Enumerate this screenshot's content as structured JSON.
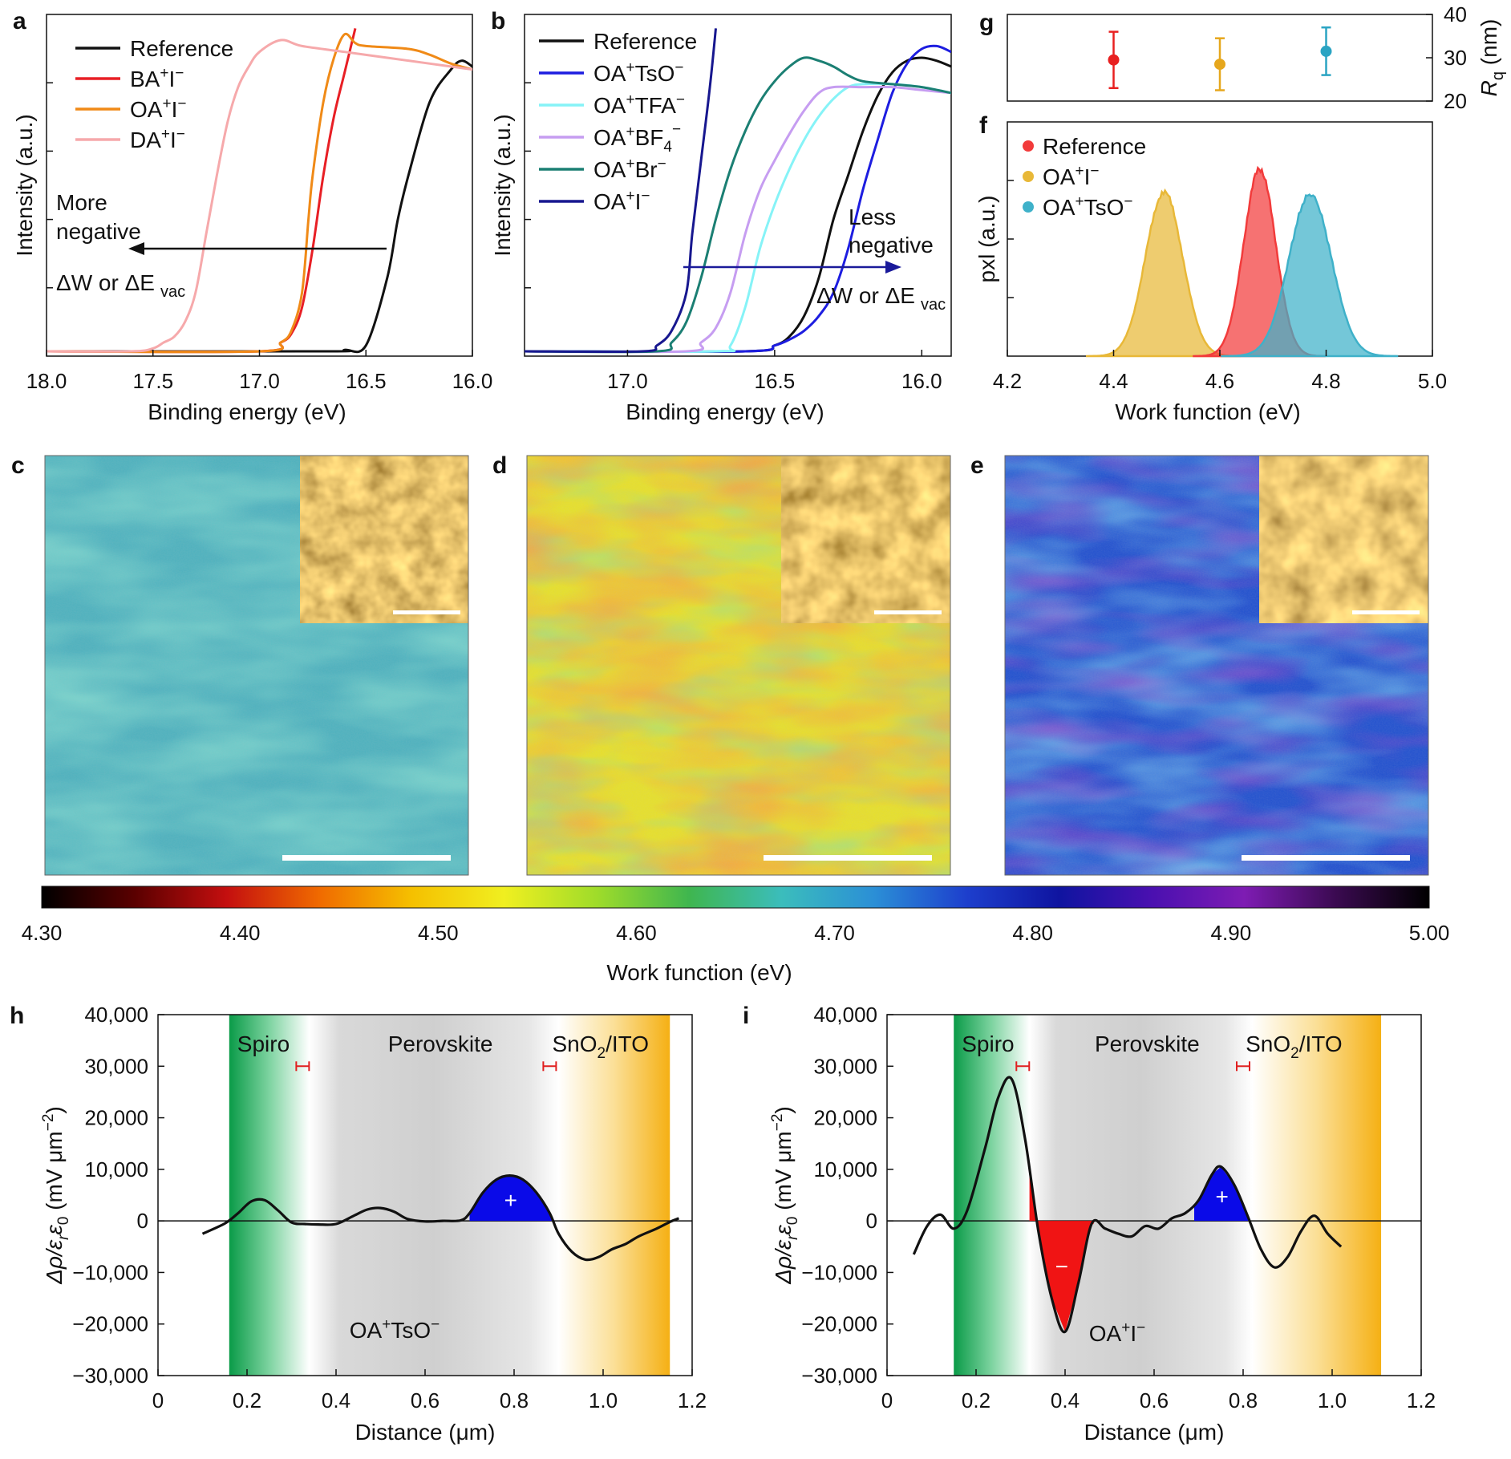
{
  "colors": {
    "Reference": "#111111",
    "BA+I-": "#e81f25",
    "OA+I-": "#f08a17",
    "DA+I-": "#f6a9ab",
    "OA+TsO-": "#1d1de0",
    "OA+TFA-": "#86f3f7",
    "OA+BF4-": "#c69df1",
    "OA+Br-": "#1b7f73",
    "OA+I-_b": "#17178f",
    "f_Reference": "#f23b3b",
    "f_OA+I-": "#e8b838",
    "f_OA+TsO-": "#3fb1c9",
    "g_red": "#e82020",
    "g_yellow": "#e6a71d",
    "g_cyan": "#2aa4c3",
    "spiro_green": "#0a9b48",
    "sno2_orange": "#f5b014",
    "fill_pos": "#0a0ae8",
    "fill_neg": "#f01414"
  },
  "chart_data": [
    {
      "panel": "a",
      "type": "line",
      "xlabel": "Binding energy (eV)",
      "ylabel": "Intensity (a.u.)",
      "xlim": [
        18.0,
        16.0
      ],
      "xticks": [
        "18.0",
        "17.5",
        "17.0",
        "16.5",
        "16.0"
      ],
      "legend_title": "",
      "series": [
        {
          "name": "Reference",
          "x": [
            18.0,
            16.7,
            16.6,
            16.5,
            16.4,
            16.35,
            16.3,
            16.2,
            16.1,
            16.05,
            16.0
          ],
          "y": [
            0,
            0,
            0.005,
            0.02,
            0.25,
            0.45,
            0.6,
            0.85,
            0.96,
            0.99,
            0.97
          ]
        },
        {
          "name": "BA+I−",
          "x": [
            18.0,
            17.0,
            16.9,
            16.85,
            16.8,
            16.75,
            16.7,
            16.65,
            16.6,
            16.55
          ],
          "y": [
            0,
            0,
            0.03,
            0.06,
            0.15,
            0.35,
            0.6,
            0.8,
            0.95,
            1.1
          ]
        },
        {
          "name": "OA+I−",
          "x": [
            18.0,
            17.0,
            16.9,
            16.85,
            16.8,
            16.77,
            16.75,
            16.7,
            16.65,
            16.6,
            16.55,
            16.5,
            16.3,
            16.2,
            16.1,
            16.0
          ],
          "y": [
            0,
            0,
            0.03,
            0.07,
            0.2,
            0.45,
            0.6,
            0.85,
            1.0,
            1.08,
            1.05,
            1.04,
            1.03,
            1.01,
            0.98,
            0.96
          ]
        },
        {
          "name": "DA+I−",
          "x": [
            18.0,
            17.6,
            17.5,
            17.45,
            17.4,
            17.35,
            17.3,
            17.25,
            17.2,
            17.15,
            17.1,
            17.05,
            17.0,
            16.9,
            16.8,
            16.6,
            16.4,
            16.2,
            16.0
          ],
          "y": [
            0,
            0,
            0.01,
            0.03,
            0.05,
            0.1,
            0.2,
            0.4,
            0.6,
            0.78,
            0.9,
            0.97,
            1.02,
            1.06,
            1.04,
            1.02,
            1.0,
            0.98,
            0.96
          ]
        }
      ],
      "annotation": [
        "More",
        "negative",
        "ΔW or ΔE",
        "vac"
      ]
    },
    {
      "panel": "b",
      "type": "line",
      "xlabel": "Binding energy (eV)",
      "ylabel": "Intensity (a.u.)",
      "xlim": [
        17.35,
        15.9
      ],
      "xticks": [
        "17.0",
        "16.5",
        "16.0"
      ],
      "series": [
        {
          "name": "Reference",
          "x": [
            17.35,
            16.6,
            16.5,
            16.45,
            16.4,
            16.35,
            16.3,
            16.25,
            16.2,
            16.15,
            16.1,
            16.05,
            16.0,
            15.95,
            15.9
          ],
          "y": [
            0,
            0,
            0.02,
            0.05,
            0.12,
            0.25,
            0.45,
            0.6,
            0.75,
            0.87,
            0.95,
            0.99,
            1.0,
            0.99,
            0.97
          ]
        },
        {
          "name": "OA+TsO−",
          "x": [
            17.35,
            16.6,
            16.5,
            16.45,
            16.4,
            16.35,
            16.3,
            16.25,
            16.2,
            16.15,
            16.1,
            16.05,
            16.0,
            15.95,
            15.9
          ],
          "y": [
            0,
            0,
            0.02,
            0.04,
            0.07,
            0.12,
            0.2,
            0.35,
            0.55,
            0.72,
            0.88,
            0.98,
            1.03,
            1.04,
            1.02
          ]
        },
        {
          "name": "OA+TFA−",
          "x": [
            17.35,
            16.7,
            16.65,
            16.6,
            16.55,
            16.5,
            16.45,
            16.4,
            16.35,
            16.3,
            16.25,
            16.2,
            16.1,
            16.0,
            15.9
          ],
          "y": [
            0,
            0,
            0.02,
            0.15,
            0.35,
            0.5,
            0.62,
            0.72,
            0.8,
            0.86,
            0.9,
            0.91,
            0.91,
            0.9,
            0.88
          ]
        },
        {
          "name": "OA+BF4−",
          "x": [
            17.35,
            16.8,
            16.75,
            16.7,
            16.65,
            16.6,
            16.55,
            16.5,
            16.45,
            16.4,
            16.35,
            16.3,
            16.2,
            16.1,
            16.0,
            15.9
          ],
          "y": [
            0,
            0,
            0.03,
            0.08,
            0.2,
            0.4,
            0.55,
            0.65,
            0.74,
            0.82,
            0.88,
            0.9,
            0.9,
            0.9,
            0.89,
            0.88
          ]
        },
        {
          "name": "OA+Br−",
          "x": [
            17.35,
            16.9,
            16.85,
            16.8,
            16.75,
            16.7,
            16.65,
            16.6,
            16.55,
            16.5,
            16.45,
            16.4,
            16.35,
            16.3,
            16.25,
            16.2,
            16.1,
            16.0,
            15.9
          ],
          "y": [
            0,
            0,
            0.03,
            0.1,
            0.25,
            0.45,
            0.62,
            0.75,
            0.85,
            0.92,
            0.97,
            1.0,
            0.99,
            0.97,
            0.94,
            0.92,
            0.91,
            0.9,
            0.88
          ]
        },
        {
          "name": "OA+I−",
          "x": [
            17.35,
            16.95,
            16.9,
            16.85,
            16.8,
            16.78,
            16.75,
            16.72,
            16.7
          ],
          "y": [
            0,
            0,
            0.02,
            0.07,
            0.2,
            0.4,
            0.65,
            0.9,
            1.1
          ]
        }
      ],
      "annotation": [
        "Less",
        "negative",
        "ΔW or ΔE",
        "vac"
      ]
    },
    {
      "panel": "g",
      "type": "scatter",
      "ylabel": "R",
      "ylabel_sub": "q",
      "ylabel_unit": " (nm)",
      "ylim": [
        20,
        40
      ],
      "yticks": [
        "20",
        "30",
        "40"
      ],
      "xlim": [
        4.2,
        5.0
      ],
      "points": [
        {
          "x": 4.4,
          "y": 29.5,
          "err": 6.5,
          "color": "g_red"
        },
        {
          "x": 4.6,
          "y": 28.5,
          "err": 6.0,
          "color": "g_yellow"
        },
        {
          "x": 4.8,
          "y": 31.5,
          "err": 5.5,
          "color": "g_cyan"
        }
      ]
    },
    {
      "panel": "f",
      "type": "area",
      "xlabel": "Work function (eV)",
      "ylabel": "pxl (a.u.)",
      "xlim": [
        4.2,
        5.0
      ],
      "xticks": [
        "4.2",
        "4.4",
        "4.6",
        "4.8",
        "5.0"
      ],
      "series": [
        {
          "name": "Reference",
          "center": 4.675,
          "sigma": 0.03,
          "peak": 0.8,
          "color": "f_Reference"
        },
        {
          "name": "OA+I−",
          "center": 4.495,
          "sigma": 0.035,
          "peak": 0.7,
          "color": "f_OA+I-"
        },
        {
          "name": "OA+TsO−",
          "center": 4.77,
          "sigma": 0.04,
          "peak": 0.69,
          "color": "f_OA+TsO-"
        }
      ]
    },
    {
      "panel": "colorbar",
      "type": "heatmap",
      "xlabel": "Work function (eV)",
      "range": [
        4.3,
        5.0
      ],
      "ticks": [
        "4.30",
        "4.40",
        "4.50",
        "4.60",
        "4.70",
        "4.80",
        "4.90",
        "5.00"
      ],
      "colormap": [
        "#000000",
        "#5a0000",
        "#c40f0f",
        "#f06a00",
        "#f5c000",
        "#f0ef20",
        "#9fdc2a",
        "#3fb64f",
        "#3bbdbc",
        "#2b8fd6",
        "#1d3fcd",
        "#0f14a0",
        "#4a10b0",
        "#7e1cb3",
        "#3a0a50",
        "#000000"
      ]
    },
    {
      "panel": "h",
      "type": "line",
      "xlabel": "Distance (μm)",
      "ylabel": "Δρ/ε",
      "ylabel_parts": [
        "Δρ/ε",
        "r",
        "ε",
        "0",
        " (mV μm",
        "−2",
        ")"
      ],
      "xlim": [
        0,
        1.2
      ],
      "ylim": [
        -30000,
        40000
      ],
      "xticks": [
        "0",
        "0.2",
        "0.4",
        "0.6",
        "0.8",
        "1.0",
        "1.2"
      ],
      "yticks": [
        "−30,000",
        "−20,000",
        "−10,000",
        "0",
        "10,000",
        "20,000",
        "30,000",
        "40,000"
      ],
      "regions": [
        {
          "label": "Spiro",
          "x0": 0.16,
          "x1": 0.34
        },
        {
          "label": "Perovskite"
        },
        {
          "label": "SnO",
          "sub": "2",
          "rest": "/ITO",
          "x0": 0.9,
          "x1": 1.15
        }
      ],
      "sample": "OA+TsO−",
      "x": [
        0.1,
        0.15,
        0.18,
        0.21,
        0.24,
        0.27,
        0.3,
        0.33,
        0.36,
        0.4,
        0.44,
        0.47,
        0.5,
        0.53,
        0.56,
        0.6,
        0.64,
        0.68,
        0.7,
        0.73,
        0.76,
        0.79,
        0.82,
        0.85,
        0.88,
        0.9,
        0.93,
        0.96,
        0.99,
        1.02,
        1.05,
        1.08,
        1.12,
        1.15,
        1.17
      ],
      "y": [
        -2500,
        -500,
        1500,
        3800,
        4000,
        2000,
        -300,
        -600,
        -700,
        -600,
        1000,
        2200,
        2500,
        1800,
        400,
        -100,
        0,
        100,
        1500,
        5500,
        8000,
        8800,
        8000,
        5500,
        1500,
        -2500,
        -6000,
        -7500,
        -7000,
        -5500,
        -4500,
        -3000,
        -1500,
        -200,
        500
      ]
    },
    {
      "panel": "i",
      "type": "line",
      "xlabel": "Distance (μm)",
      "ylabel": "Δρ/ε",
      "ylabel_parts": [
        "Δρ/ε",
        "r",
        "ε",
        "0",
        " (mV μm",
        "−2",
        ")"
      ],
      "xlim": [
        0,
        1.2
      ],
      "ylim": [
        -30000,
        40000
      ],
      "xticks": [
        "0",
        "0.2",
        "0.4",
        "0.6",
        "0.8",
        "1.0",
        "1.2"
      ],
      "yticks": [
        "−30,000",
        "−20,000",
        "−10,000",
        "0",
        "10,000",
        "20,000",
        "30,000",
        "40,000"
      ],
      "regions": [
        {
          "label": "Spiro",
          "x0": 0.15,
          "x1": 0.32
        },
        {
          "label": "Perovskite"
        },
        {
          "label": "SnO",
          "sub": "2",
          "rest": "/ITO",
          "x0": 0.82,
          "x1": 1.11
        }
      ],
      "sample": "OA+I−",
      "x": [
        0.06,
        0.09,
        0.12,
        0.15,
        0.18,
        0.22,
        0.25,
        0.28,
        0.31,
        0.34,
        0.37,
        0.4,
        0.43,
        0.46,
        0.49,
        0.52,
        0.55,
        0.58,
        0.61,
        0.64,
        0.67,
        0.7,
        0.73,
        0.75,
        0.78,
        0.81,
        0.84,
        0.87,
        0.9,
        0.93,
        0.96,
        0.99,
        1.02
      ],
      "y": [
        -6500,
        -1000,
        1200,
        -1500,
        2000,
        14000,
        24000,
        27500,
        16000,
        -2000,
        -15000,
        -21500,
        -12000,
        -500,
        -1500,
        -2500,
        -3000,
        -1000,
        -1500,
        500,
        1500,
        4000,
        9000,
        10500,
        7000,
        1000,
        -5500,
        -9000,
        -7000,
        -2000,
        1000,
        -2500,
        -5000
      ]
    }
  ],
  "panels_img": {
    "c_label": "c",
    "d_label": "d",
    "e_label": "e"
  },
  "regions_text": {
    "plus": "+",
    "minus": "−"
  }
}
